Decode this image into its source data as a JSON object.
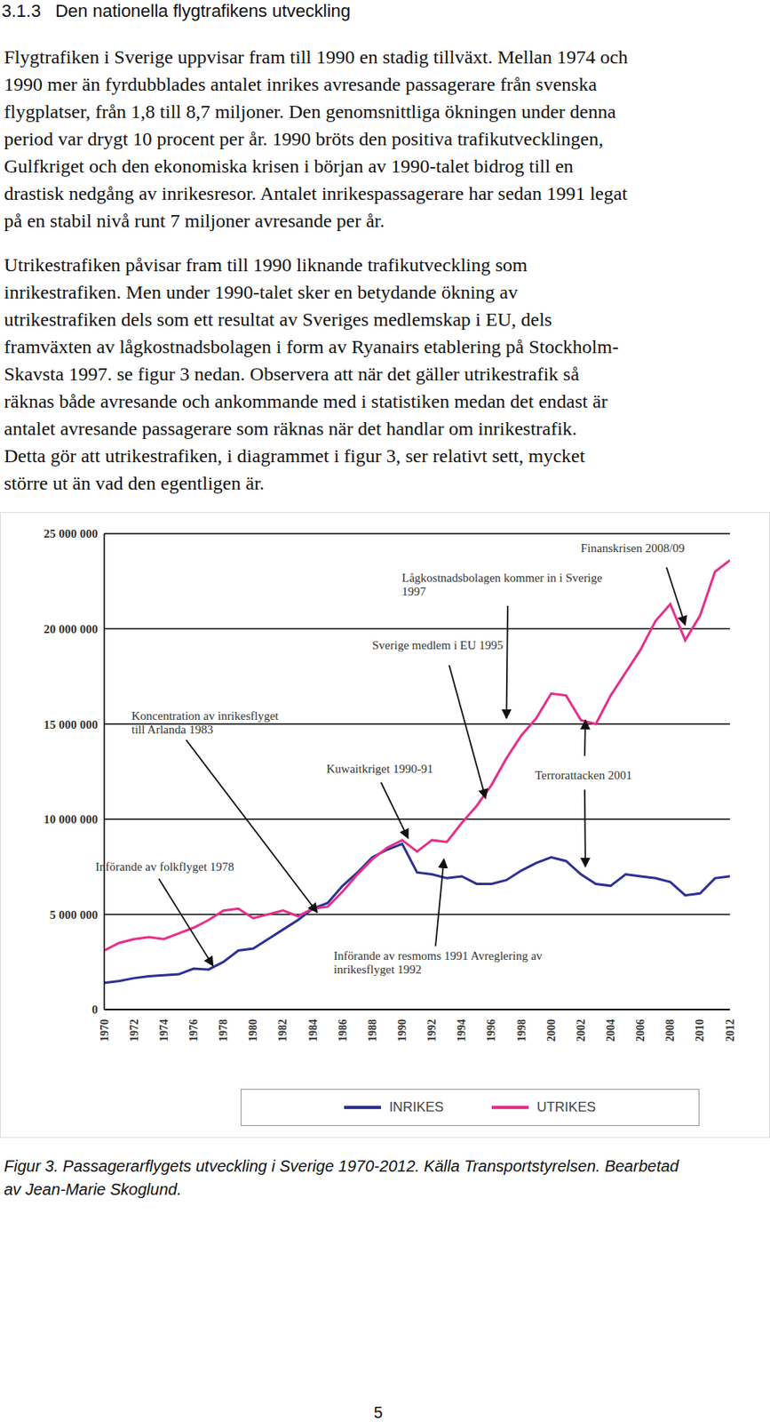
{
  "section_number": "3.1.3",
  "heading": "Den nationella flygtrafikens utveckling",
  "paragraphs": [
    [
      "Flygtrafiken i Sverige uppvisar fram till 1990 en stadig tillväxt. Mellan 1974 och",
      "1990 mer än fyrdubblades antalet inrikes avresande passagerare från svenska",
      "flygplatser, från 1,8 till 8,7 miljoner. Den genomsnittliga ökningen under denna",
      "period var drygt 10 procent per år. 1990 bröts den positiva trafikutvecklingen,",
      "Gulfkriget och den ekonomiska krisen i början av 1990-talet bidrog till en",
      "drastisk nedgång av inrikesresor. Antalet inrikespassagerare har sedan 1991 legat",
      "på en stabil nivå runt 7 miljoner avresande per år."
    ],
    [
      "Utrikestrafiken påvisar fram till 1990 liknande trafikutveckling som",
      "inrikestrafiken. Men under 1990-talet sker en betydande ökning av",
      "utrikestrafiken dels som ett resultat av Sveriges medlemskap i EU, dels",
      "framväxten av lågkostnadsbolagen i form av Ryanairs etablering på Stockholm-",
      "Skavsta 1997. se figur 3 nedan. Observera att när det gäller utrikestrafik så",
      "räknas både avresande och ankommande med i statistiken medan det endast är",
      "antalet avresande passagerare som räknas när det handlar om inrikestrafik.",
      "Detta gör att utrikestrafiken, i diagrammet i figur 3, ser relativt sett, mycket",
      "större ut än vad den egentligen är."
    ]
  ],
  "chart_data": {
    "type": "line",
    "x": [
      1970,
      1971,
      1972,
      1973,
      1974,
      1975,
      1976,
      1977,
      1978,
      1979,
      1980,
      1981,
      1982,
      1983,
      1984,
      1985,
      1986,
      1987,
      1988,
      1989,
      1990,
      1991,
      1992,
      1993,
      1994,
      1995,
      1996,
      1997,
      1998,
      1999,
      2000,
      2001,
      2002,
      2003,
      2004,
      2005,
      2006,
      2007,
      2008,
      2009,
      2010,
      2011,
      2012
    ],
    "series": [
      {
        "name": "INRIKES",
        "color": "#2e3192",
        "values": [
          1400000,
          1500000,
          1650000,
          1750000,
          1800000,
          1850000,
          2150000,
          2100000,
          2500000,
          3100000,
          3200000,
          3700000,
          4200000,
          4700000,
          5300000,
          5600000,
          6500000,
          7200000,
          8000000,
          8400000,
          8700000,
          7200000,
          7100000,
          6900000,
          7000000,
          6600000,
          6600000,
          6800000,
          7300000,
          7700000,
          8000000,
          7800000,
          7100000,
          6600000,
          6500000,
          7100000,
          7000000,
          6900000,
          6700000,
          6000000,
          6100000,
          6900000,
          7000000
        ]
      },
      {
        "name": "UTRIKES",
        "color": "#e6308a",
        "values": [
          3100000,
          3500000,
          3700000,
          3800000,
          3700000,
          4000000,
          4300000,
          4700000,
          5200000,
          5300000,
          4800000,
          5000000,
          5200000,
          4900000,
          5300000,
          5400000,
          6200000,
          7100000,
          7900000,
          8500000,
          8900000,
          8300000,
          8900000,
          8800000,
          9800000,
          10700000,
          11800000,
          13200000,
          14400000,
          15300000,
          16600000,
          16500000,
          15200000,
          15000000,
          16500000,
          17700000,
          18900000,
          20400000,
          21300000,
          19400000,
          20700000,
          23000000,
          23600000
        ]
      }
    ],
    "xlim": [
      1970,
      2012
    ],
    "xticks": [
      1970,
      1972,
      1974,
      1976,
      1978,
      1980,
      1982,
      1984,
      1986,
      1988,
      1990,
      1992,
      1994,
      1996,
      1998,
      2000,
      2002,
      2004,
      2006,
      2008,
      2010,
      2012
    ],
    "ylim": [
      0,
      25000000
    ],
    "yticks": [
      0,
      {
        "value": 5000000,
        "label": "5 000 000"
      },
      {
        "value": 10000000,
        "label": "10 000 000"
      },
      {
        "value": 15000000,
        "label": "15 000 000"
      },
      {
        "value": 20000000,
        "label": "20 000 000"
      },
      {
        "value": 25000000,
        "label": "25 000 000"
      }
    ],
    "grid": true,
    "legend": "bottom",
    "annotations": [
      {
        "text": [
          "Finanskrisen 2008/09"
        ],
        "targets": [
          {
            "x": 2009,
            "y": 20200000
          }
        ]
      },
      {
        "text": [
          "Lågkostnadsbolagen kommer in i Sverige",
          "1997"
        ],
        "targets": [
          {
            "x": 1997,
            "y": 15300000
          }
        ]
      },
      {
        "text": [
          "Sverige medlem i EU 1995"
        ],
        "targets": [
          {
            "x": 1995.6,
            "y": 11100000
          }
        ]
      },
      {
        "text": [
          "Koncentration av inrikesflyget",
          "till Arlanda 1983"
        ],
        "targets": [
          {
            "x": 1984.3,
            "y": 5100000
          }
        ]
      },
      {
        "text": [
          "Kuwaitkriget 1990-91"
        ],
        "targets": [
          {
            "x": 1990.4,
            "y": 9000000
          }
        ]
      },
      {
        "text": [
          "Terrorattacken 2001"
        ],
        "targets": [
          {
            "x": 2002.3,
            "y": 15200000
          },
          {
            "x": 2002.3,
            "y": 7500000
          }
        ]
      },
      {
        "text": [
          "Införande av folkflyget 1978"
        ],
        "targets": [
          {
            "x": 1977.3,
            "y": 2300000
          }
        ]
      },
      {
        "text": [
          "Införande av resmoms 1991 Avreglering av",
          "inrikesflyget 1992"
        ],
        "targets": [
          {
            "x": 1992.8,
            "y": 7900000
          }
        ]
      }
    ]
  },
  "caption": [
    "Figur 3. Passagerarflygets utveckling i Sverige 1970-2012. Källa Transportstyrelsen. Bearbetad",
    "av Jean-Marie Skoglund."
  ],
  "page_number": "5"
}
